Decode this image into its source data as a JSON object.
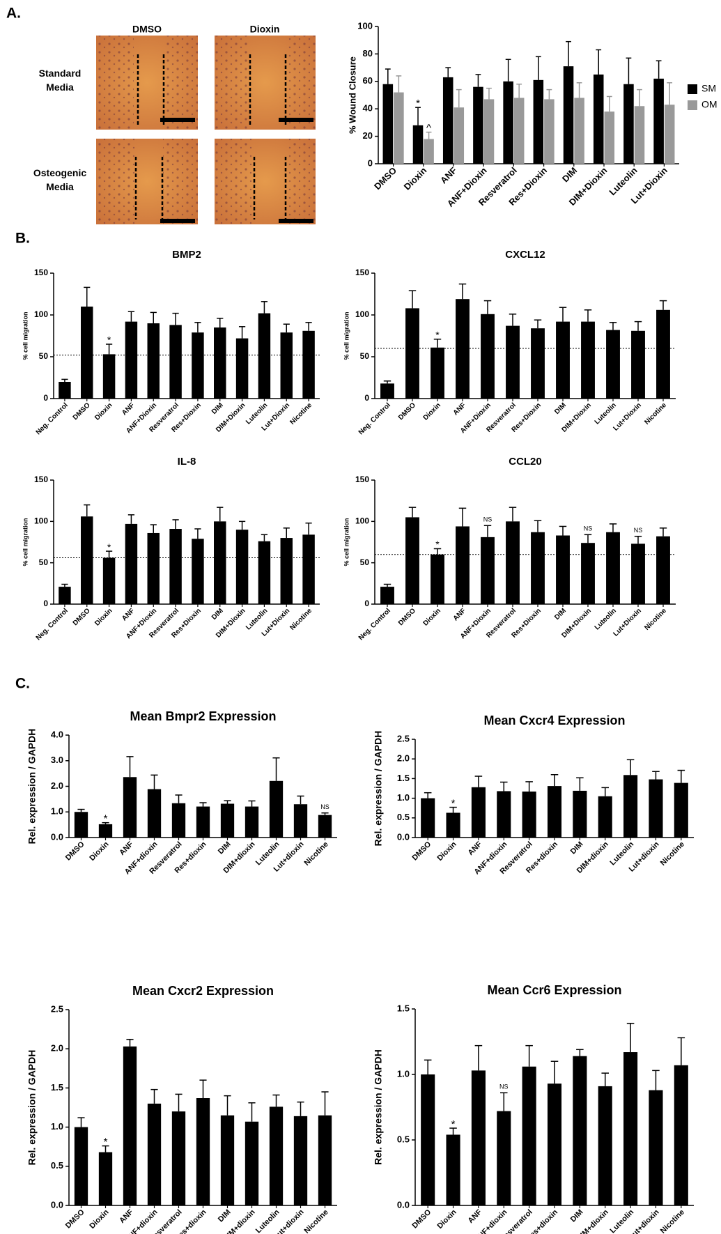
{
  "panels": [
    "A.",
    "B.",
    "C."
  ],
  "images": {
    "columns": [
      "DMSO",
      "Dioxin"
    ],
    "rows": [
      "Standard Media",
      "Osteogenic Media"
    ]
  },
  "chart_data": [
    {
      "type": "bar",
      "ylabel": "% Wound Closure",
      "categories": [
        "DMSO",
        "Dioxin",
        "ANF",
        "ANF+Dioxin",
        "Resveratrol",
        "Res+Dioxin",
        "DIM",
        "DIM+Dioxin",
        "Luteolin",
        "Lut+Dioxin"
      ],
      "series": [
        {
          "name": "SM",
          "color": "#000000",
          "values": [
            58,
            28,
            63,
            56,
            60,
            61,
            71,
            65,
            58,
            62
          ],
          "errors": [
            11,
            13,
            7,
            9,
            16,
            17,
            18,
            18,
            19,
            13
          ],
          "annotations": [
            null,
            "*",
            null,
            null,
            null,
            null,
            null,
            null,
            null,
            null
          ]
        },
        {
          "name": "OM",
          "color": "#999999",
          "values": [
            52,
            18,
            41,
            47,
            48,
            47,
            48,
            38,
            42,
            43
          ],
          "errors": [
            12,
            5,
            13,
            8,
            10,
            7,
            11,
            11,
            12,
            16
          ],
          "annotations": [
            null,
            "^",
            null,
            null,
            null,
            null,
            null,
            null,
            null,
            null
          ]
        }
      ],
      "ylim": [
        0,
        100
      ],
      "yticks": [
        0,
        20,
        40,
        60,
        80,
        100
      ],
      "legend": "right"
    },
    {
      "type": "bar",
      "title": "BMP2",
      "ylabel": "% cell migration",
      "categories": [
        "Neg. Control",
        "DMSO",
        "Dioxin",
        "ANF",
        "ANF+Dioxin",
        "Resveratrol",
        "Res+Dioxin",
        "DIM",
        "DIM+Dioxin",
        "Luteolin",
        "Lut+Dioxin",
        "Nicotine"
      ],
      "values": [
        20,
        110,
        53,
        92,
        90,
        88,
        79,
        85,
        72,
        102,
        79,
        81
      ],
      "errors": [
        3,
        23,
        12,
        12,
        13,
        14,
        12,
        11,
        14,
        14,
        10,
        10
      ],
      "annotations": [
        null,
        null,
        "*",
        null,
        null,
        null,
        null,
        null,
        null,
        null,
        null,
        null
      ],
      "color": "#000000",
      "reference_line": 52,
      "ylim": [
        0,
        150
      ],
      "yticks": [
        0,
        50,
        100,
        150
      ]
    },
    {
      "type": "bar",
      "title": "CXCL12",
      "ylabel": "% cell migration",
      "categories": [
        "Neg. Control",
        "DMSO",
        "Dioxin",
        "ANF",
        "ANF+Dioxin",
        "Resveratrol",
        "Res+Dioxin",
        "DIM",
        "DIM+Dioxin",
        "Luteolin",
        "Lut+Dioxin",
        "Nicotine"
      ],
      "values": [
        18,
        108,
        61,
        119,
        101,
        87,
        84,
        92,
        92,
        82,
        81,
        106
      ],
      "errors": [
        3,
        21,
        10,
        18,
        16,
        14,
        10,
        17,
        14,
        9,
        11,
        11
      ],
      "annotations": [
        null,
        null,
        "*",
        null,
        null,
        null,
        null,
        null,
        null,
        null,
        null,
        null
      ],
      "color": "#000000",
      "reference_line": 60,
      "ylim": [
        0,
        150
      ],
      "yticks": [
        0,
        50,
        100,
        150
      ]
    },
    {
      "type": "bar",
      "title": "IL-8",
      "ylabel": "% cell migration",
      "categories": [
        "Neg. Control",
        "DMSO",
        "Dioxin",
        "ANF",
        "ANF+Dioxin",
        "Resveratrol",
        "Res+Dioxin",
        "DIM",
        "DIM+Dioxin",
        "Luteolin",
        "Lut+Dioxin",
        "Nicotine"
      ],
      "values": [
        21,
        106,
        56,
        97,
        86,
        91,
        79,
        100,
        90,
        76,
        80,
        84
      ],
      "errors": [
        3,
        14,
        8,
        11,
        10,
        11,
        12,
        17,
        10,
        8,
        12,
        14
      ],
      "annotations": [
        null,
        null,
        "*",
        null,
        null,
        null,
        null,
        null,
        null,
        null,
        null,
        null
      ],
      "color": "#000000",
      "reference_line": 56,
      "ylim": [
        0,
        150
      ],
      "yticks": [
        0,
        50,
        100,
        150
      ]
    },
    {
      "type": "bar",
      "title": "CCL20",
      "ylabel": "% cell migration",
      "categories": [
        "Neg. Control",
        "DMSO",
        "Dioxin",
        "ANF",
        "ANF+Dioxin",
        "Resveratrol",
        "Res+Dioxin",
        "DIM",
        "DIM+Dioxin",
        "Luteolin",
        "Lut+Dioxin",
        "Nicotine"
      ],
      "values": [
        21,
        105,
        60,
        94,
        81,
        100,
        87,
        83,
        74,
        87,
        73,
        82
      ],
      "errors": [
        3,
        12,
        7,
        22,
        14,
        17,
        14,
        11,
        10,
        10,
        9,
        10
      ],
      "annotations": [
        null,
        null,
        "*",
        null,
        "NS",
        null,
        null,
        null,
        "NS",
        null,
        "NS",
        null
      ],
      "color": "#000000",
      "reference_line": 60,
      "ylim": [
        0,
        150
      ],
      "yticks": [
        0,
        50,
        100,
        150
      ]
    },
    {
      "type": "bar",
      "title": "Mean Bmpr2 Expression",
      "ylabel": "Rel. expression / GAPDH",
      "categories": [
        "DMSO",
        "Dioxin",
        "ANF",
        "ANF+dioxin",
        "Resveratrol",
        "Res+dioxin",
        "DIM",
        "DIM+dioxin",
        "Luteolin",
        "Lut+dioxin",
        "Nicotine"
      ],
      "values": [
        1.0,
        0.52,
        2.36,
        1.89,
        1.34,
        1.21,
        1.32,
        1.21,
        2.21,
        1.3,
        0.88
      ],
      "errors": [
        0.1,
        0.06,
        0.8,
        0.55,
        0.32,
        0.15,
        0.12,
        0.22,
        0.9,
        0.32,
        0.08
      ],
      "annotations": [
        null,
        "*",
        null,
        null,
        null,
        null,
        null,
        null,
        null,
        null,
        "NS"
      ],
      "color": "#000000",
      "ylim": [
        0,
        4
      ],
      "yticks": [
        {
          "value": 0,
          "label": "0.0"
        },
        {
          "value": 1,
          "label": "1.0"
        },
        {
          "value": 2,
          "label": "2.0"
        },
        {
          "value": 3,
          "label": "3.0"
        },
        {
          "value": 4,
          "label": "4.0"
        }
      ]
    },
    {
      "type": "bar",
      "title": "Mean Cxcr4 Expression",
      "ylabel": "Rel. expression / GAPDH",
      "categories": [
        "DMSO",
        "Dioxin",
        "ANF",
        "ANF+dioxin",
        "Resveratrol",
        "Res+dioxin",
        "DIM",
        "DIM+dioxin",
        "Luteolin",
        "Lut+dioxin",
        "Nicotine"
      ],
      "values": [
        1.0,
        0.63,
        1.28,
        1.18,
        1.17,
        1.31,
        1.19,
        1.05,
        1.59,
        1.48,
        1.39
      ],
      "errors": [
        0.14,
        0.14,
        0.28,
        0.23,
        0.25,
        0.29,
        0.33,
        0.22,
        0.39,
        0.2,
        0.32
      ],
      "annotations": [
        null,
        "*",
        null,
        null,
        null,
        null,
        null,
        null,
        null,
        null,
        null
      ],
      "color": "#000000",
      "ylim": [
        0,
        2.5
      ],
      "yticks": [
        {
          "value": 0,
          "label": "0.0"
        },
        0.5,
        {
          "value": 1,
          "label": "1.0"
        },
        1.5,
        {
          "value": 2,
          "label": "2.0"
        },
        2.5
      ]
    },
    {
      "type": "bar",
      "title": "Mean Cxcr2 Expression",
      "ylabel": "Rel. expression / GAPDH",
      "categories": [
        "DMSO",
        "Dioxin",
        "ANF",
        "ANF+dioxin",
        "Resveratrol",
        "Res+dioxin",
        "DIM",
        "DIM+dioxin",
        "Luteolin",
        "Lut+dioxin",
        "Nicotine"
      ],
      "values": [
        1.0,
        0.68,
        2.03,
        1.3,
        1.2,
        1.37,
        1.15,
        1.07,
        1.26,
        1.14,
        1.15
      ],
      "errors": [
        0.12,
        0.08,
        0.09,
        0.18,
        0.22,
        0.23,
        0.25,
        0.24,
        0.15,
        0.18,
        0.3
      ],
      "annotations": [
        null,
        "*",
        null,
        null,
        null,
        null,
        null,
        null,
        null,
        null,
        null
      ],
      "color": "#000000",
      "ylim": [
        0,
        2.5
      ],
      "yticks": [
        {
          "value": 0,
          "label": "0.0"
        },
        0.5,
        {
          "value": 1,
          "label": "1.0"
        },
        1.5,
        {
          "value": 2,
          "label": "2.0"
        },
        2.5
      ]
    },
    {
      "type": "bar",
      "title": "Mean Ccr6 Expression",
      "ylabel": "Rel. expression / GAPDH",
      "categories": [
        "DMSO",
        "Dioxin",
        "ANF",
        "ANF+dioxin",
        "Resveratrol",
        "Res+dioxin",
        "DIM",
        "DIM+dioxin",
        "Luteolin",
        "Lut+dioxin",
        "Nicotine"
      ],
      "values": [
        1.0,
        0.54,
        1.03,
        0.72,
        1.06,
        0.93,
        1.14,
        0.91,
        1.17,
        0.88,
        1.07
      ],
      "errors": [
        0.11,
        0.05,
        0.19,
        0.14,
        0.16,
        0.17,
        0.05,
        0.1,
        0.22,
        0.15,
        0.21
      ],
      "annotations": [
        null,
        "*",
        null,
        "NS",
        null,
        null,
        null,
        null,
        null,
        null,
        null
      ],
      "color": "#000000",
      "ylim": [
        0,
        1.5
      ],
      "yticks": [
        {
          "value": 0,
          "label": "0.0"
        },
        0.5,
        {
          "value": 1,
          "label": "1.0"
        },
        1.5
      ]
    }
  ]
}
